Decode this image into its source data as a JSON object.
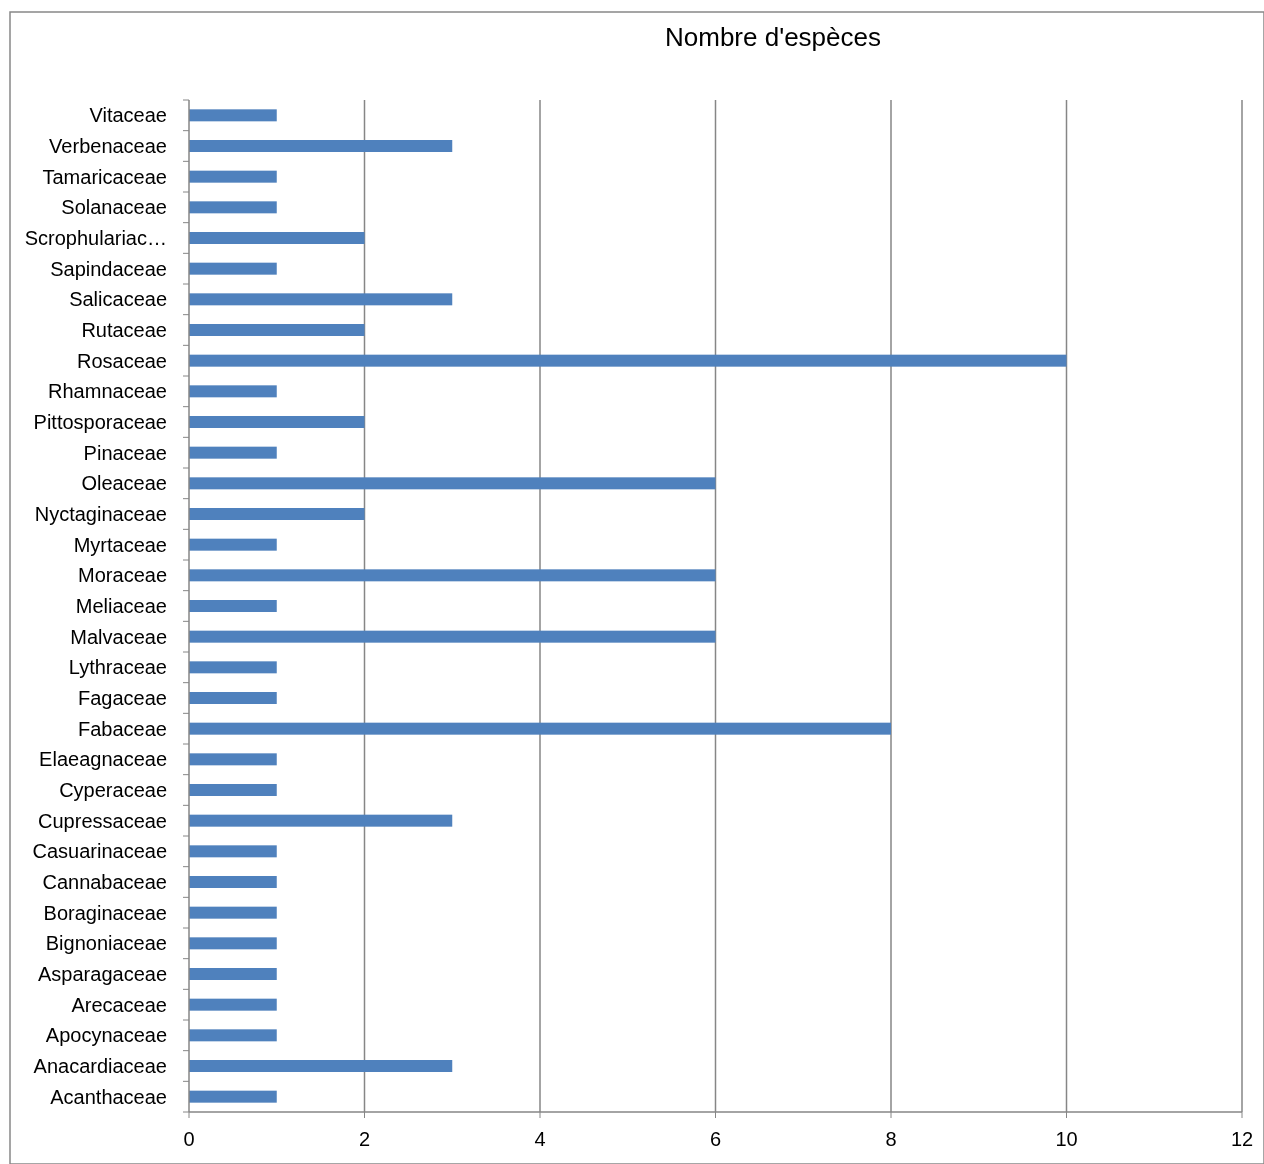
{
  "chart_data": {
    "type": "bar",
    "orientation": "horizontal",
    "title": "Nombre d'espèces",
    "categories": [
      "Vitaceae",
      "Verbenaceae",
      "Tamaricaceae",
      "Solanaceae",
      "Scrophulariac…",
      "Sapindaceae",
      "Salicaceae",
      "Rutaceae",
      "Rosaceae",
      "Rhamnaceae",
      "Pittosporaceae",
      "Pinaceae",
      "Oleaceae",
      "Nyctaginaceae",
      "Myrtaceae",
      "Moraceae",
      "Meliaceae",
      "Malvaceae",
      "Lythraceae",
      "Fagaceae",
      "Fabaceae",
      "Elaeagnaceae",
      "Cyperaceae",
      "Cupressaceae",
      "Casuarinaceae",
      "Cannabaceae",
      "Boraginaceae",
      "Bignoniaceae",
      "Asparagaceae",
      "Arecaceae",
      "Apocynaceae",
      "Anacardiaceae",
      "Acanthaceae"
    ],
    "values": [
      1,
      3,
      1,
      1,
      2,
      1,
      3,
      2,
      10,
      1,
      2,
      1,
      6,
      2,
      1,
      6,
      1,
      6,
      1,
      1,
      8,
      1,
      1,
      3,
      1,
      1,
      1,
      1,
      1,
      1,
      1,
      3,
      1
    ],
    "color": "#4f81bd",
    "xlim": [
      0,
      12
    ],
    "xticks": [
      0,
      2,
      4,
      6,
      8,
      10,
      12
    ],
    "grid": "x"
  }
}
